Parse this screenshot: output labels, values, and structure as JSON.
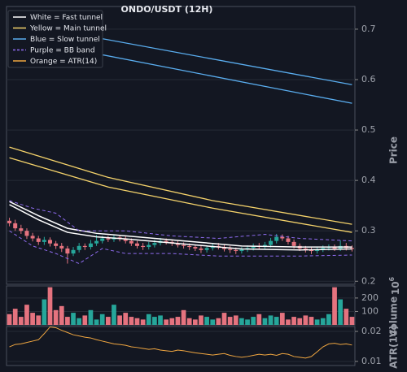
{
  "chart_data": [
    {
      "type": "candlestick",
      "title": "ONDO/USDT (12H)",
      "ylabel": "Price",
      "xlim": [
        -0.5,
        59.5
      ],
      "ylim": [
        0.194,
        0.745
      ],
      "yticks": [
        0.2,
        0.3,
        0.4,
        0.5,
        0.6,
        0.7
      ],
      "grid": true,
      "up_color": "#26a69a",
      "down_color": "#e5737f",
      "candles": {
        "open": [
          0.32,
          0.315,
          0.305,
          0.3,
          0.29,
          0.285,
          0.278,
          0.282,
          0.275,
          0.27,
          0.265,
          0.255,
          0.262,
          0.27,
          0.268,
          0.275,
          0.28,
          0.285,
          0.283,
          0.287,
          0.284,
          0.28,
          0.275,
          0.27,
          0.268,
          0.272,
          0.276,
          0.28,
          0.278,
          0.275,
          0.272,
          0.27,
          0.268,
          0.265,
          0.262,
          0.266,
          0.27,
          0.268,
          0.264,
          0.262,
          0.26,
          0.263,
          0.266,
          0.27,
          0.268,
          0.272,
          0.28,
          0.288,
          0.285,
          0.278,
          0.27,
          0.265,
          0.262,
          0.26,
          0.263,
          0.266,
          0.268,
          0.265,
          0.27,
          0.266
        ],
        "high": [
          0.326,
          0.322,
          0.312,
          0.305,
          0.296,
          0.29,
          0.288,
          0.287,
          0.28,
          0.276,
          0.27,
          0.268,
          0.276,
          0.275,
          0.282,
          0.292,
          0.29,
          0.29,
          0.293,
          0.292,
          0.289,
          0.285,
          0.28,
          0.276,
          0.278,
          0.282,
          0.286,
          0.285,
          0.283,
          0.28,
          0.277,
          0.275,
          0.273,
          0.27,
          0.271,
          0.275,
          0.276,
          0.273,
          0.27,
          0.267,
          0.268,
          0.271,
          0.275,
          0.276,
          0.278,
          0.286,
          0.294,
          0.293,
          0.29,
          0.283,
          0.275,
          0.27,
          0.267,
          0.268,
          0.271,
          0.273,
          0.273,
          0.281,
          0.276,
          0.271
        ],
        "low": [
          0.309,
          0.3,
          0.294,
          0.284,
          0.279,
          0.272,
          0.272,
          0.269,
          0.264,
          0.258,
          0.235,
          0.25,
          0.257,
          0.262,
          0.263,
          0.27,
          0.275,
          0.278,
          0.278,
          0.279,
          0.275,
          0.27,
          0.265,
          0.262,
          0.263,
          0.267,
          0.271,
          0.273,
          0.27,
          0.267,
          0.265,
          0.262,
          0.26,
          0.256,
          0.257,
          0.261,
          0.263,
          0.259,
          0.256,
          0.254,
          0.255,
          0.258,
          0.261,
          0.263,
          0.263,
          0.267,
          0.275,
          0.28,
          0.273,
          0.265,
          0.26,
          0.257,
          0.254,
          0.255,
          0.258,
          0.261,
          0.26,
          0.26,
          0.261,
          0.259
        ],
        "close": [
          0.315,
          0.305,
          0.3,
          0.29,
          0.285,
          0.278,
          0.282,
          0.275,
          0.27,
          0.265,
          0.255,
          0.262,
          0.27,
          0.268,
          0.275,
          0.28,
          0.285,
          0.283,
          0.287,
          0.284,
          0.28,
          0.275,
          0.27,
          0.268,
          0.272,
          0.276,
          0.28,
          0.278,
          0.275,
          0.272,
          0.27,
          0.268,
          0.265,
          0.262,
          0.266,
          0.27,
          0.268,
          0.264,
          0.262,
          0.26,
          0.263,
          0.266,
          0.27,
          0.268,
          0.272,
          0.28,
          0.288,
          0.285,
          0.278,
          0.27,
          0.265,
          0.262,
          0.26,
          0.263,
          0.266,
          0.268,
          0.265,
          0.27,
          0.266,
          0.264
        ]
      },
      "bands": [
        {
          "name": "White = Fast tunnel",
          "color": "#ffffff",
          "width": 1.5,
          "x": [
            0,
            5,
            10,
            15,
            20,
            30,
            40,
            50,
            59
          ],
          "upper": [
            0.358,
            0.33,
            0.305,
            0.295,
            0.29,
            0.28,
            0.27,
            0.268,
            0.268
          ],
          "lower": [
            0.352,
            0.322,
            0.297,
            0.288,
            0.284,
            0.274,
            0.264,
            0.262,
            0.264
          ]
        },
        {
          "name": "Yellow = Main tunnel",
          "color": "#f5d36b",
          "width": 1.3,
          "x": [
            0,
            17,
            35,
            59
          ],
          "upper": [
            0.466,
            0.406,
            0.36,
            0.313
          ],
          "lower": [
            0.445,
            0.387,
            0.345,
            0.297
          ]
        },
        {
          "name": "Blue = Slow tunnel",
          "color": "#5aaef0",
          "width": 1.3,
          "x": [
            0,
            59
          ],
          "upper": [
            0.715,
            0.59
          ],
          "lower": [
            0.685,
            0.553
          ]
        },
        {
          "name": "Purple = BB band",
          "color": "#8f6cf0",
          "width": 1,
          "dashed": true,
          "x": [
            0,
            4,
            8,
            12,
            16,
            20,
            28,
            36,
            44,
            50,
            59
          ],
          "upper": [
            0.36,
            0.345,
            0.335,
            0.3,
            0.3,
            0.3,
            0.29,
            0.285,
            0.293,
            0.285,
            0.28
          ],
          "lower": [
            0.3,
            0.27,
            0.255,
            0.235,
            0.265,
            0.255,
            0.255,
            0.25,
            0.25,
            0.25,
            0.252
          ]
        }
      ],
      "extra_legend": {
        "name": "Orange = ATR(14)",
        "color": "#f0a640"
      }
    },
    {
      "type": "bar",
      "ylabel": "Volume",
      "multiplier": "10",
      "multiplier_exp": "6",
      "xlim": [
        -0.5,
        59.5
      ],
      "ylim": [
        0,
        290
      ],
      "yticks": [
        100,
        200
      ],
      "grid": true,
      "values": [
        80,
        120,
        60,
        150,
        90,
        70,
        190,
        280,
        110,
        140,
        60,
        90,
        50,
        70,
        110,
        40,
        80,
        60,
        150,
        70,
        90,
        60,
        50,
        40,
        80,
        60,
        70,
        40,
        50,
        60,
        110,
        50,
        40,
        70,
        60,
        40,
        50,
        90,
        60,
        70,
        50,
        40,
        60,
        80,
        50,
        70,
        60,
        90,
        40,
        60,
        50,
        70,
        60,
        40,
        50,
        80,
        280,
        190,
        120,
        60
      ]
    },
    {
      "type": "line",
      "ylabel": "ATR(14)",
      "log": true,
      "xlim": [
        -0.5,
        59.5
      ],
      "ylim": [
        0.0091,
        0.0224
      ],
      "yticks": [
        0.01,
        0.02
      ],
      "grid": true,
      "color": "#f0a640",
      "values": [
        0.014,
        0.0148,
        0.015,
        0.0155,
        0.016,
        0.0165,
        0.019,
        0.0222,
        0.0218,
        0.0205,
        0.0195,
        0.0185,
        0.018,
        0.0175,
        0.0172,
        0.0165,
        0.016,
        0.0155,
        0.015,
        0.0148,
        0.0145,
        0.014,
        0.0138,
        0.0135,
        0.0132,
        0.0134,
        0.013,
        0.0128,
        0.0126,
        0.013,
        0.0128,
        0.0125,
        0.0122,
        0.012,
        0.0118,
        0.0116,
        0.0118,
        0.012,
        0.0115,
        0.0112,
        0.011,
        0.0112,
        0.0115,
        0.0118,
        0.0116,
        0.0118,
        0.0115,
        0.012,
        0.0118,
        0.0112,
        0.011,
        0.0108,
        0.0112,
        0.0125,
        0.014,
        0.015,
        0.0152,
        0.0148,
        0.015,
        0.0146
      ]
    }
  ]
}
